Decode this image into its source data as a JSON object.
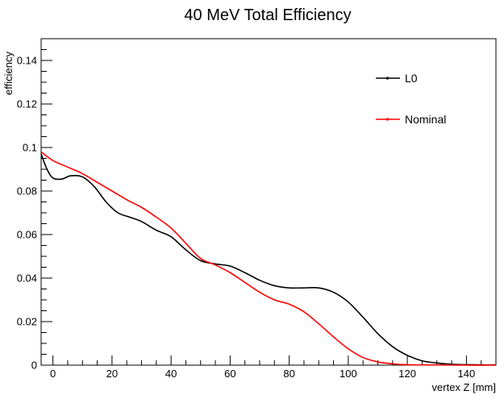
{
  "chart_data": {
    "type": "line",
    "title": "40 MeV Total Efficiency",
    "xlabel": "vertex Z [mm]",
    "ylabel": "efficiency",
    "xlim": [
      -4,
      150
    ],
    "ylim": [
      0,
      0.15
    ],
    "x_ticks": [
      0,
      20,
      40,
      60,
      80,
      100,
      120,
      140
    ],
    "x_tick_labels": [
      "0",
      "20",
      "40",
      "60",
      "80",
      "100",
      "120",
      "140"
    ],
    "y_ticks": [
      0,
      0.02,
      0.04,
      0.06,
      0.08,
      0.1,
      0.12,
      0.14
    ],
    "y_tick_labels": [
      "0",
      "0.02",
      "0.04",
      "0.06",
      "0.08",
      "0.1",
      "0.12",
      "0.14"
    ],
    "grid": false,
    "legend_position": "top-right",
    "series": [
      {
        "name": "L0",
        "color": "#000000",
        "x": [
          -4,
          -2,
          0,
          3,
          6,
          10,
          14,
          18,
          22,
          26,
          30,
          35,
          40,
          45,
          50,
          55,
          60,
          65,
          70,
          75,
          80,
          85,
          90,
          95,
          100,
          105,
          110,
          115,
          120,
          125,
          130,
          135,
          140,
          145,
          150
        ],
        "y": [
          0.097,
          0.09,
          0.086,
          0.0855,
          0.087,
          0.0865,
          0.082,
          0.075,
          0.07,
          0.068,
          0.066,
          0.062,
          0.059,
          0.053,
          0.048,
          0.0465,
          0.0455,
          0.0425,
          0.039,
          0.0365,
          0.0355,
          0.0355,
          0.0355,
          0.0335,
          0.029,
          0.022,
          0.0145,
          0.0085,
          0.0045,
          0.002,
          0.001,
          0.0004,
          0.0002,
          0.0001,
          0.0001
        ]
      },
      {
        "name": "Nominal",
        "color": "#ff0000",
        "x": [
          -4,
          0,
          5,
          10,
          15,
          20,
          25,
          30,
          35,
          40,
          45,
          50,
          55,
          60,
          65,
          70,
          75,
          80,
          85,
          90,
          95,
          100,
          105,
          110,
          115,
          120,
          130,
          140,
          150
        ],
        "y": [
          0.098,
          0.094,
          0.091,
          0.088,
          0.084,
          0.08,
          0.076,
          0.0725,
          0.068,
          0.063,
          0.056,
          0.049,
          0.046,
          0.0425,
          0.038,
          0.0335,
          0.03,
          0.028,
          0.0245,
          0.019,
          0.013,
          0.0075,
          0.0035,
          0.0015,
          0.0006,
          0.0002,
          0.0001,
          0.0,
          0.0
        ]
      }
    ]
  }
}
